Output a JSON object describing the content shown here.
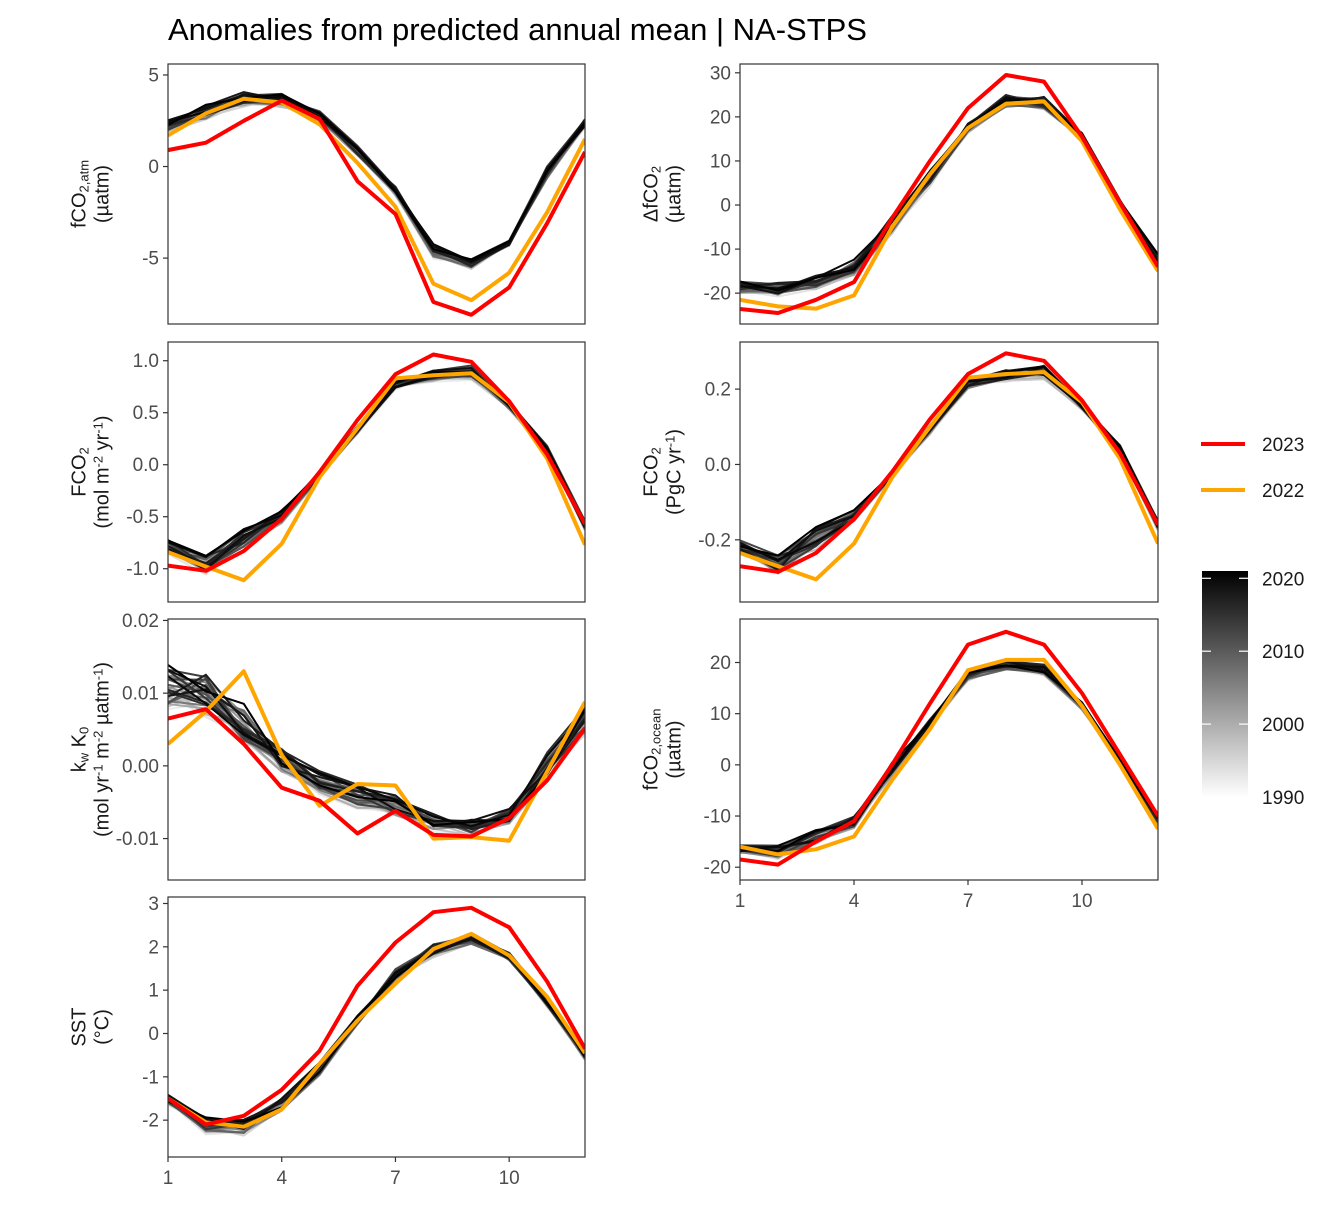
{
  "title": "Anomalies from predicted annual mean | NA-STPS",
  "colors": {
    "year_2023": "#ff0000",
    "year_2022": "#ffa500",
    "gradient_dark": "#000000",
    "gradient_light": "#ffffff"
  },
  "legend": {
    "highlight": [
      {
        "label": "2023",
        "color": "#ff0000"
      },
      {
        "label": "2022",
        "color": "#ffa500"
      }
    ],
    "gradient_ticks": [
      "2020",
      "2010",
      "2000",
      "1990"
    ],
    "gradient_range": [
      1990,
      2021
    ]
  },
  "chart_data": [
    {
      "id": "fco2atm",
      "type": "line",
      "position": "top-left",
      "ylabel_lines": [
        [
          "fCO",
          "2,atm"
        ],
        [
          "(µatm)"
        ]
      ],
      "yticks": [
        5,
        0,
        -5
      ],
      "ytick_labels": [
        "5",
        "0",
        "-5"
      ],
      "ylim": [
        -8.6,
        5.6
      ],
      "xlim": [
        1,
        12
      ],
      "x": [
        1,
        2,
        3,
        4,
        5,
        6,
        7,
        8,
        9,
        10,
        11,
        12
      ],
      "series": [
        {
          "name": "2023",
          "values": [
            0.9,
            1.3,
            2.5,
            3.6,
            2.6,
            -0.8,
            -2.6,
            -7.4,
            -8.1,
            -6.6,
            -3.1,
            0.8
          ]
        },
        {
          "name": "2022",
          "values": [
            1.7,
            2.9,
            3.7,
            3.5,
            2.3,
            0.2,
            -2.2,
            -6.4,
            -7.3,
            -5.8,
            -2.5,
            1.5
          ]
        }
      ],
      "background_band": {
        "years": [
          1990,
          2021
        ],
        "low": [
          1.5,
          2.0,
          2.6,
          2.7,
          2.0,
          0.1,
          -1.9,
          -5.5,
          -6.0,
          -4.6,
          -1.2,
          1.8
        ],
        "high": [
          2.9,
          3.9,
          4.8,
          4.6,
          3.5,
          1.6,
          -0.8,
          -3.7,
          -4.6,
          -3.8,
          0.5,
          2.9
        ]
      }
    },
    {
      "id": "dfco2",
      "type": "line",
      "position": "top-right",
      "ylabel_lines": [
        [
          "ΔfCO",
          "2"
        ],
        [
          "(µatm)"
        ]
      ],
      "yticks": [
        30,
        20,
        10,
        0,
        -10,
        -20
      ],
      "ytick_labels": [
        "30",
        "20",
        "10",
        "0",
        "-10",
        "-20"
      ],
      "ylim": [
        -27,
        32
      ],
      "xlim": [
        1,
        12
      ],
      "x": [
        1,
        2,
        3,
        4,
        5,
        6,
        7,
        8,
        9,
        10,
        11,
        12
      ],
      "series": [
        {
          "name": "2023",
          "values": [
            -23.6,
            -24.5,
            -21.5,
            -17.5,
            -3,
            10,
            22,
            29.5,
            28,
            15.5,
            0.5,
            -14
          ]
        },
        {
          "name": "2022",
          "values": [
            -21.5,
            -23,
            -23.5,
            -20.5,
            -5,
            7,
            17.5,
            23,
            23.5,
            14.5,
            -1,
            -15
          ]
        }
      ],
      "background_band": {
        "years": [
          1990,
          2021
        ],
        "low": [
          -22,
          -23,
          -21.5,
          -18.5,
          -9,
          2,
          15,
          20,
          19.5,
          13.5,
          -2,
          -16
        ],
        "high": [
          -15.5,
          -15.5,
          -13.5,
          -10,
          0,
          10,
          20,
          27,
          26.5,
          17.5,
          2.5,
          -9
        ]
      }
    },
    {
      "id": "fco2_mol",
      "type": "line",
      "position": "middle-left",
      "ylabel_lines": [
        [
          "FCO",
          "2"
        ],
        [
          "(mol m",
          "-2",
          " yr",
          "-1",
          ")"
        ]
      ],
      "yticks": [
        1.0,
        0.5,
        0.0,
        -0.5,
        -1.0
      ],
      "ytick_labels": [
        "1.0",
        "0.5",
        "0.0",
        "-0.5",
        "-1.0"
      ],
      "ylim": [
        -1.32,
        1.18
      ],
      "xlim": [
        1,
        12
      ],
      "x": [
        1,
        2,
        3,
        4,
        5,
        6,
        7,
        8,
        9,
        10,
        11,
        12
      ],
      "series": [
        {
          "name": "2023",
          "values": [
            -0.97,
            -1.02,
            -0.83,
            -0.52,
            -0.07,
            0.43,
            0.87,
            1.06,
            0.99,
            0.61,
            0.1,
            -0.57
          ]
        },
        {
          "name": "2022",
          "values": [
            -0.84,
            -0.98,
            -1.11,
            -0.76,
            -0.12,
            0.35,
            0.83,
            0.86,
            0.88,
            0.6,
            0.06,
            -0.77
          ]
        }
      ],
      "background_band": {
        "years": [
          1990,
          2021
        ],
        "low": [
          -0.95,
          -1.2,
          -0.96,
          -0.65,
          -0.18,
          0.24,
          0.67,
          0.73,
          0.73,
          0.48,
          0.02,
          -0.7
        ],
        "high": [
          -0.62,
          -0.73,
          -0.47,
          -0.35,
          -0.02,
          0.43,
          0.86,
          0.98,
          1.06,
          0.65,
          0.26,
          -0.47
        ]
      }
    },
    {
      "id": "fco2_pgc",
      "type": "line",
      "position": "middle-right",
      "ylabel_lines": [
        [
          "FCO",
          "2"
        ],
        [
          "(PgC yr",
          "-1",
          ")"
        ]
      ],
      "yticks": [
        0.2,
        0.0,
        -0.2
      ],
      "ytick_labels": [
        "0.2",
        "0.0",
        "-0.2"
      ],
      "ylim": [
        -0.365,
        0.325
      ],
      "xlim": [
        1,
        12
      ],
      "x": [
        1,
        2,
        3,
        4,
        5,
        6,
        7,
        8,
        9,
        10,
        11,
        12
      ],
      "series": [
        {
          "name": "2023",
          "values": [
            -0.27,
            -0.285,
            -0.235,
            -0.145,
            -0.02,
            0.12,
            0.24,
            0.295,
            0.275,
            0.17,
            0.03,
            -0.16
          ]
        },
        {
          "name": "2022",
          "values": [
            -0.235,
            -0.27,
            -0.305,
            -0.21,
            -0.035,
            0.1,
            0.23,
            0.24,
            0.245,
            0.165,
            0.015,
            -0.21
          ]
        }
      ],
      "background_band": {
        "years": [
          1990,
          2021
        ],
        "low": [
          -0.265,
          -0.33,
          -0.265,
          -0.18,
          -0.05,
          0.065,
          0.185,
          0.2,
          0.2,
          0.13,
          0.005,
          -0.195
        ],
        "high": [
          -0.17,
          -0.2,
          -0.13,
          -0.095,
          -0.005,
          0.12,
          0.24,
          0.27,
          0.295,
          0.18,
          0.07,
          -0.13
        ]
      }
    },
    {
      "id": "kwk0",
      "type": "line",
      "position": "lower-left",
      "ylabel_lines": [
        [
          "k",
          "w",
          " K",
          "0"
        ],
        [
          "(mol yr",
          "-1",
          " m",
          "-2",
          " µatm",
          "-1",
          ")"
        ]
      ],
      "yticks": [
        0.02,
        0.01,
        0.0,
        -0.01
      ],
      "ytick_labels": [
        "0.02",
        "0.01",
        "0.00",
        "-0.01"
      ],
      "ylim": [
        -0.0157,
        0.0202
      ],
      "xlim": [
        1,
        12
      ],
      "x": [
        1,
        2,
        3,
        4,
        5,
        6,
        7,
        8,
        9,
        10,
        11,
        12
      ],
      "series": [
        {
          "name": "2023",
          "values": [
            0.0065,
            0.0078,
            0.003,
            -0.003,
            -0.0048,
            -0.0093,
            -0.0062,
            -0.0095,
            -0.0097,
            -0.0072,
            -0.002,
            0.0052
          ]
        },
        {
          "name": "2022",
          "values": [
            0.003,
            0.0075,
            0.013,
            0.0015,
            -0.0055,
            -0.0025,
            -0.0027,
            -0.01,
            -0.0098,
            -0.0103,
            -0.0008,
            0.0088
          ]
        }
      ],
      "background_band": {
        "years": [
          1990,
          2021
        ],
        "low": [
          0.0035,
          0.003,
          -0.001,
          -0.0035,
          -0.006,
          -0.008,
          -0.009,
          -0.0105,
          -0.011,
          -0.0095,
          -0.0055,
          0.002
        ],
        "high": [
          0.0175,
          0.0165,
          0.012,
          0.005,
          0.0015,
          -0.0005,
          -0.002,
          -0.005,
          -0.006,
          -0.0045,
          0.005,
          0.0105
        ]
      }
    },
    {
      "id": "fco2ocean",
      "type": "line",
      "position": "lower-right",
      "ylabel_lines": [
        [
          "fCO",
          "2,ocean"
        ],
        [
          "(µatm)"
        ]
      ],
      "yticks": [
        20,
        10,
        0,
        -10,
        -20
      ],
      "ytick_labels": [
        "20",
        "10",
        "0",
        "-10",
        "-20"
      ],
      "ylim": [
        -22.5,
        28.5
      ],
      "xlim": [
        1,
        12
      ],
      "xticks": [
        1,
        4,
        7,
        10
      ],
      "xtick_labels": [
        "1",
        "4",
        "7",
        "10"
      ],
      "x": [
        1,
        2,
        3,
        4,
        5,
        6,
        7,
        8,
        9,
        10,
        11,
        12
      ],
      "series": [
        {
          "name": "2023",
          "values": [
            -18.5,
            -19.5,
            -15,
            -11,
            0,
            12,
            23.5,
            26,
            23.5,
            14,
            2,
            -10
          ]
        },
        {
          "name": "2022",
          "values": [
            -16,
            -17.5,
            -16.5,
            -14,
            -3,
            7,
            18.5,
            20.5,
            20.5,
            11.5,
            0,
            -12.5
          ]
        }
      ],
      "background_band": {
        "years": [
          1990,
          2021
        ],
        "low": [
          -18.5,
          -20,
          -17.5,
          -14,
          -4,
          6,
          15,
          17,
          16,
          9.5,
          -1,
          -13
        ],
        "high": [
          -14.5,
          -14,
          -11,
          -8.5,
          2,
          10,
          20,
          22,
          21,
          13.5,
          2,
          -8.5
        ]
      }
    },
    {
      "id": "sst",
      "type": "line",
      "position": "bottom-left",
      "ylabel_lines": [
        [
          "SST"
        ],
        [
          "(°C)"
        ]
      ],
      "yticks": [
        3,
        2,
        1,
        0,
        -1,
        -2
      ],
      "ytick_labels": [
        "3",
        "2",
        "1",
        "0",
        "-1",
        "-2"
      ],
      "ylim": [
        -2.85,
        3.15
      ],
      "xlim": [
        1,
        12
      ],
      "xticks": [
        1,
        4,
        7,
        10
      ],
      "xtick_labels": [
        "1",
        "4",
        "7",
        "10"
      ],
      "x": [
        1,
        2,
        3,
        4,
        5,
        6,
        7,
        8,
        9,
        10,
        11,
        12
      ],
      "series": [
        {
          "name": "2023",
          "values": [
            -1.5,
            -2.1,
            -1.9,
            -1.3,
            -0.4,
            1.1,
            2.1,
            2.8,
            2.9,
            2.45,
            1.2,
            -0.35
          ]
        },
        {
          "name": "2022",
          "values": [
            -1.5,
            -2.05,
            -2.15,
            -1.75,
            -0.7,
            0.3,
            1.15,
            1.95,
            2.3,
            1.8,
            0.85,
            -0.45
          ]
        }
      ],
      "background_band": {
        "years": [
          1990,
          2021
        ],
        "low": [
          -1.8,
          -2.55,
          -2.6,
          -2.0,
          -1.2,
          0.0,
          0.95,
          1.55,
          1.85,
          1.5,
          0.45,
          -0.8
        ],
        "high": [
          -1.25,
          -1.7,
          -1.7,
          -1.3,
          -0.45,
          0.6,
          1.75,
          2.3,
          2.5,
          2.05,
          1.0,
          -0.2
        ]
      }
    }
  ]
}
